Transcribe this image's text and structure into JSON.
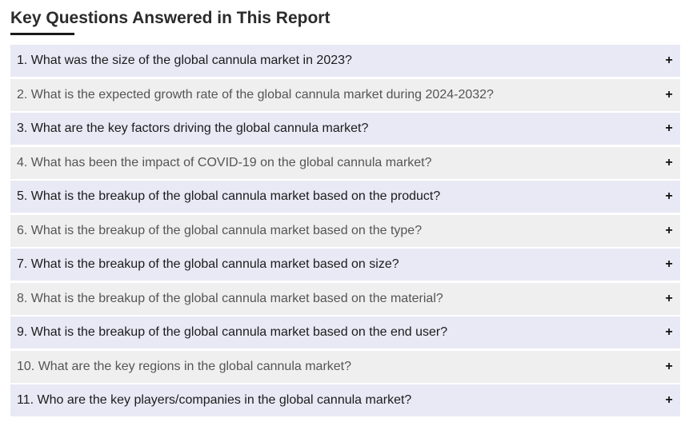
{
  "header": {
    "title": "Key Questions Answered in This Report"
  },
  "faq": {
    "toggle_glyph": "+",
    "toggle_icon": "plus-icon",
    "items": [
      {
        "label": "1. What was the size of the global cannula market in 2023?"
      },
      {
        "label": "2. What is the expected growth rate of the global cannula market during 2024-2032?"
      },
      {
        "label": "3. What are the key factors driving the global cannula market?"
      },
      {
        "label": "4. What has been the impact of COVID-19 on the global cannula market?"
      },
      {
        "label": "5. What is the breakup of the global cannula market based on the product?"
      },
      {
        "label": "6. What is the breakup of the global cannula market based on the type?"
      },
      {
        "label": "7. What is the breakup of the global cannula market based on size?"
      },
      {
        "label": "8. What is the breakup of the global cannula market based on the material?"
      },
      {
        "label": "9. What is the breakup of the global cannula market based on the end user?"
      },
      {
        "label": "10. What are the key regions in the global cannula market?"
      },
      {
        "label": "11. Who are the key players/companies in the global cannula market?"
      }
    ]
  },
  "colors": {
    "row_odd": "#e8e9f5",
    "row_even": "#efefef",
    "title": "#2b2b2b",
    "underline": "#1a1a1a"
  }
}
